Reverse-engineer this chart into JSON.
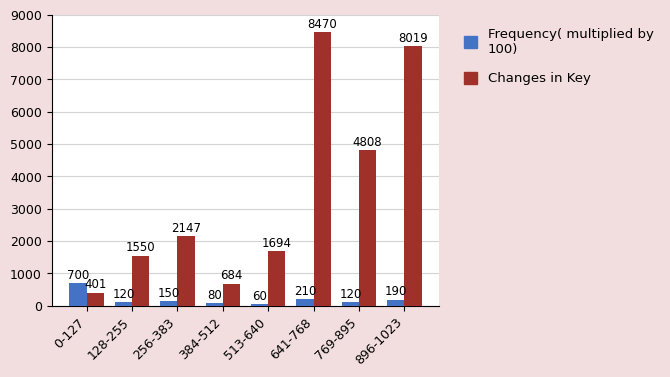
{
  "categories": [
    "0-127",
    "128-255",
    "256-383",
    "384-512",
    "513-640",
    "641-768",
    "769-895",
    "896-1023"
  ],
  "frequency": [
    700,
    120,
    150,
    80,
    60,
    210,
    120,
    190
  ],
  "changes_in_key": [
    401,
    1550,
    2147,
    684,
    1694,
    8470,
    4808,
    8019
  ],
  "freq_color": "#4472C4",
  "key_color": "#A0312A",
  "background_color": "#F2DEDE",
  "plot_bg_color": "#FFFFFF",
  "ylim": [
    0,
    9000
  ],
  "yticks": [
    0,
    1000,
    2000,
    3000,
    4000,
    5000,
    6000,
    7000,
    8000,
    9000
  ],
  "legend_freq": "Frequency( multiplied by\n100)",
  "legend_key": "Changes in Key",
  "bar_width": 0.38,
  "label_fontsize": 8.5,
  "tick_fontsize": 9,
  "legend_fontsize": 9.5
}
